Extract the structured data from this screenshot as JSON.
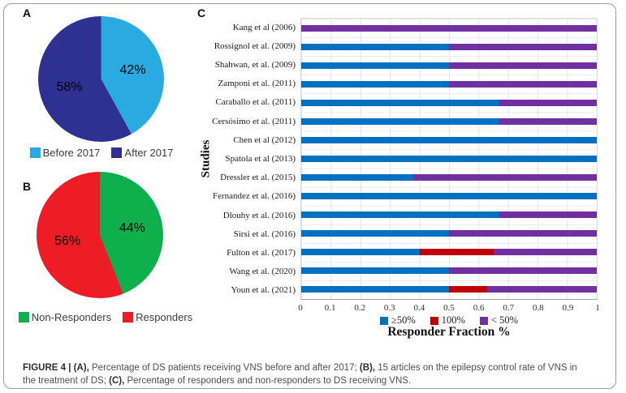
{
  "panels": {
    "a_letter": "A",
    "b_letter": "B",
    "c_letter": "C"
  },
  "caption": {
    "bold1": "FIGURE 4 | (A),",
    "text1": " Percentage of DS patients receiving VNS before and after 2017; ",
    "bold2": "(B),",
    "text2": " 15 articles on the epilepsy control rate of VNS in the treatment of DS; ",
    "bold3": "(C),",
    "text3": " Percentage of responders and non-responders to DS receiving VNS."
  },
  "chart_data": [
    {
      "id": "A",
      "type": "pie",
      "start_angle_deg": 0,
      "direction": "clockwise",
      "labels": [
        "Before 2017",
        "After 2017"
      ],
      "values": [
        42,
        58
      ],
      "slice_labels": [
        "42%",
        "58%"
      ],
      "colors": [
        "#29ABE2",
        "#2E3192"
      ],
      "legend_position": "bottom"
    },
    {
      "id": "B",
      "type": "pie",
      "start_angle_deg": 0,
      "direction": "clockwise",
      "labels": [
        "Non-Responders",
        "Responders"
      ],
      "values": [
        44,
        56
      ],
      "slice_labels": [
        "44%",
        "56%"
      ],
      "colors": [
        "#0DB04C",
        "#EE1C25"
      ],
      "legend_position": "bottom"
    },
    {
      "id": "C",
      "type": "bar",
      "orientation": "horizontal-stacked",
      "title": "",
      "xlabel": "Responder Fraction %",
      "ylabel": "Studies",
      "xlim": [
        0,
        1
      ],
      "xticks": [
        "0",
        "0.1",
        "0.2",
        "0.3",
        "0.4",
        "0.5",
        "0.6",
        "0.7",
        "0.8",
        "0.9",
        "1"
      ],
      "grid": true,
      "legend_position": "bottom",
      "categories": [
        "Kang et al (2006)",
        "Rossignol et al. (2009)",
        "Shahwan, et al. (2009)",
        "Zamponi et al. (2011)",
        "Caraballo et al. (2011)",
        "Cersósimo et al. (2011)",
        "Chen et al (2012)",
        "Spatola et al (2013)",
        "Dressler et al. (2015)",
        "Fernandez et al. (2016)",
        "Dlouhy et al. (2016)",
        "Sirsi et al. (2016)",
        "Fulton et al. (2017)",
        "Wang et al. (2020)",
        "Youn et al. (2021)"
      ],
      "series": [
        {
          "name": "≥50%",
          "color": "#0070C0",
          "values": [
            0,
            0.5,
            0.5,
            0.5,
            0.67,
            0.67,
            1,
            1,
            0.38,
            1,
            0.67,
            0.5,
            0.4,
            0.5,
            0.5
          ]
        },
        {
          "name": "100%",
          "color": "#C00000",
          "values": [
            0,
            0,
            0,
            0,
            0,
            0,
            0,
            0,
            0,
            0,
            0,
            0,
            0.25,
            0,
            0.13
          ]
        },
        {
          "name": "< 50%",
          "color": "#7030A0",
          "values": [
            1,
            0.5,
            0.5,
            0.5,
            0.33,
            0.33,
            0,
            0,
            0.62,
            0,
            0.33,
            0.5,
            0.35,
            0.5,
            0.37
          ]
        }
      ]
    }
  ]
}
